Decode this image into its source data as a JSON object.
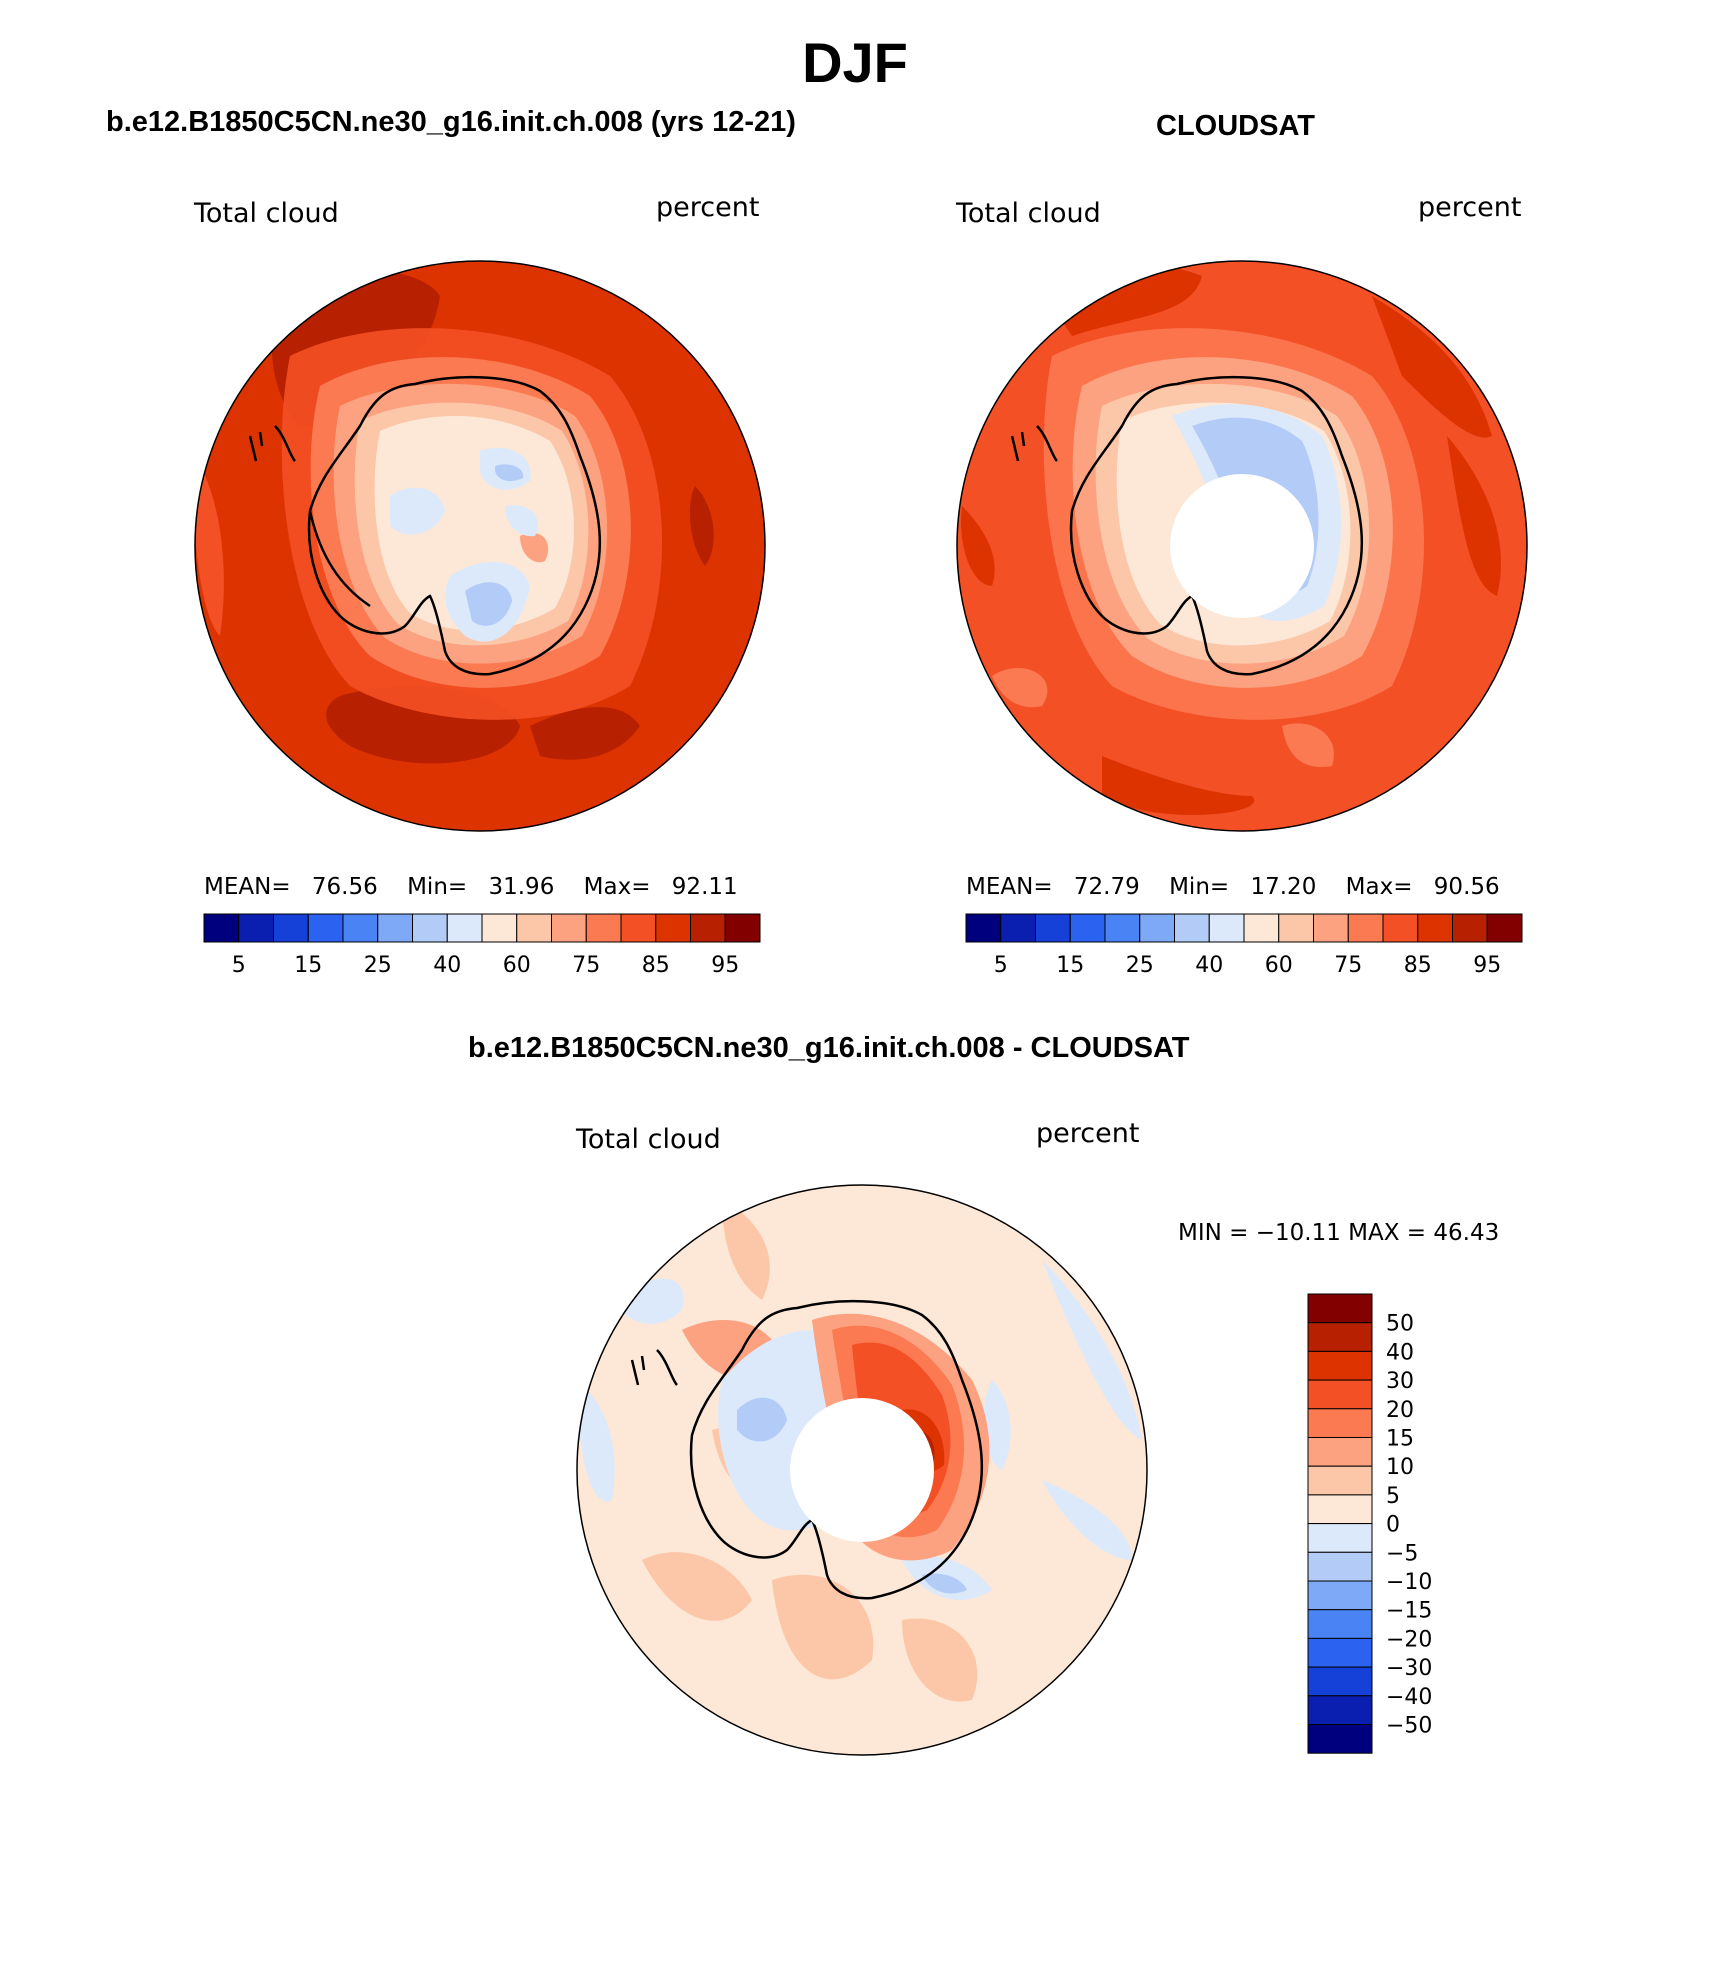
{
  "page": {
    "suptitle": "DJF",
    "diff_title": "b.e12.B1850C5CN.ne30_g16.init.ch.008 - CLOUDSAT"
  },
  "colors": {
    "seq": [
      "#00007f",
      "#0a1fb0",
      "#1641d8",
      "#2b62f0",
      "#4a84f4",
      "#7ea9f6",
      "#b3ccf7",
      "#dce9fb",
      "#fde8d7",
      "#fcc7a9",
      "#fca280",
      "#fb7a52",
      "#f45025",
      "#dd3300",
      "#b72000",
      "#820000"
    ],
    "div": [
      "#00007f",
      "#0a1fb0",
      "#1641d8",
      "#2b62f0",
      "#4a84f4",
      "#7ea9f6",
      "#b3ccf7",
      "#dce9fb",
      "#fde8d7",
      "#fcc7a9",
      "#fca280",
      "#fb7a52",
      "#f45025",
      "#dd3300",
      "#b72000",
      "#820000"
    ]
  },
  "chart_data": [
    {
      "type": "heatmap",
      "title": "b.e12.B1850C5CN.ne30_g16.init.ch.008 (yrs 12-21)",
      "left_label": "Total cloud",
      "right_label": "percent",
      "mean_label": "MEAN=",
      "mean": "76.56",
      "min_label": "Min=",
      "min": "31.96",
      "max_label": "Max=",
      "max": "92.11",
      "colorbar_ticks": [
        "5",
        "15",
        "25",
        "40",
        "60",
        "75",
        "85",
        "95"
      ]
    },
    {
      "type": "heatmap",
      "title": "CLOUDSAT",
      "left_label": "Total cloud",
      "right_label": "percent",
      "mean_label": "MEAN=",
      "mean": "72.79",
      "min_label": "Min=",
      "min": "17.20",
      "max_label": "Max=",
      "max": "90.56",
      "colorbar_ticks": [
        "5",
        "15",
        "25",
        "40",
        "60",
        "75",
        "85",
        "95"
      ]
    },
    {
      "type": "heatmap",
      "title": "b.e12.B1850C5CN.ne30_g16.init.ch.008 - CLOUDSAT",
      "left_label": "Total cloud",
      "right_label": "percent",
      "minmax_text": "MIN = −10.11 MAX =   46.43",
      "colorbar_ticks": [
        "50",
        "40",
        "30",
        "20",
        "15",
        "10",
        "5",
        "0",
        "−5",
        "−10",
        "−15",
        "−20",
        "−30",
        "−40",
        "−50"
      ]
    }
  ]
}
